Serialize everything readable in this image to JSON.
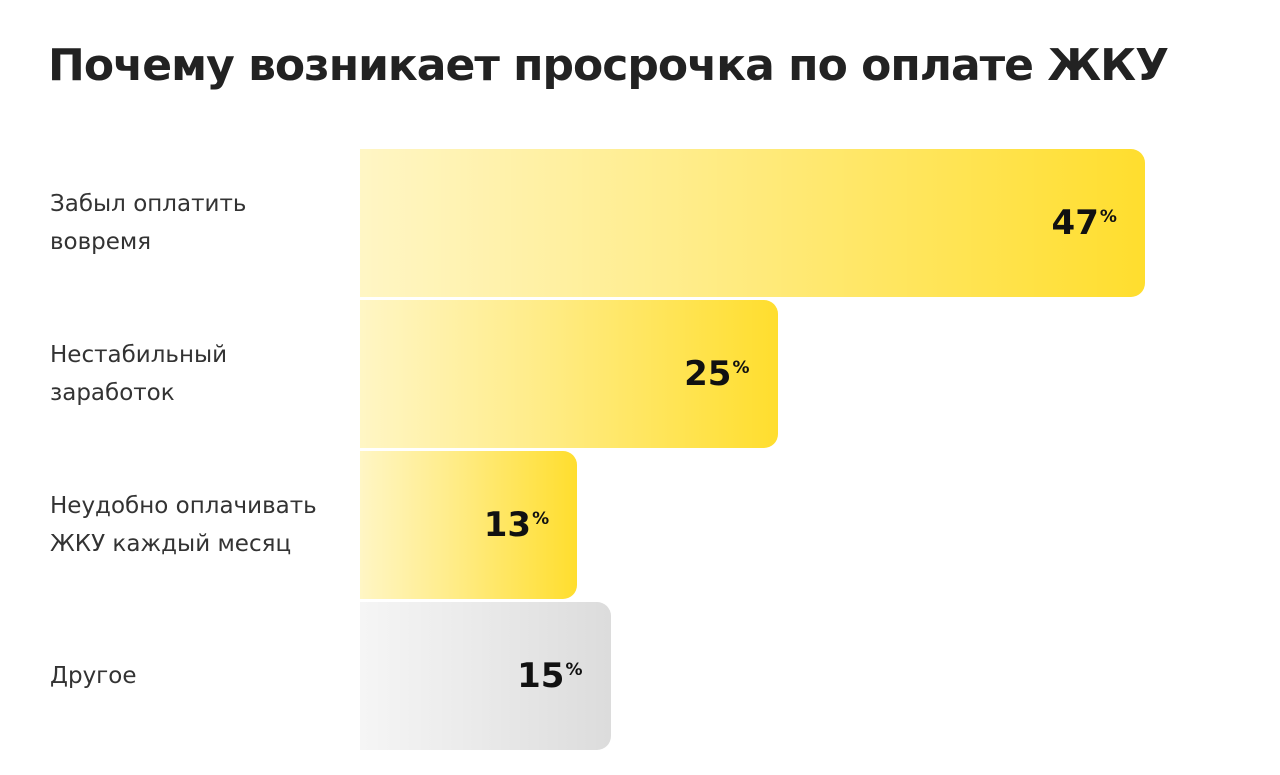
{
  "chart_data": {
    "type": "bar",
    "orientation": "horizontal",
    "title": "Почему возникает просрочка по оплате ЖКУ",
    "categories": [
      "Забыл оплатить\nвовремя",
      "Нестабильный\nзаработок",
      "Неудобно оплачивать\nЖКУ каждый месяц",
      "Другое"
    ],
    "values": [
      47,
      25,
      13,
      15
    ],
    "value_unit": "%",
    "colors": [
      "#ffde2e",
      "#ffde2e",
      "#ffde2e",
      "#dcdcdc"
    ]
  }
}
